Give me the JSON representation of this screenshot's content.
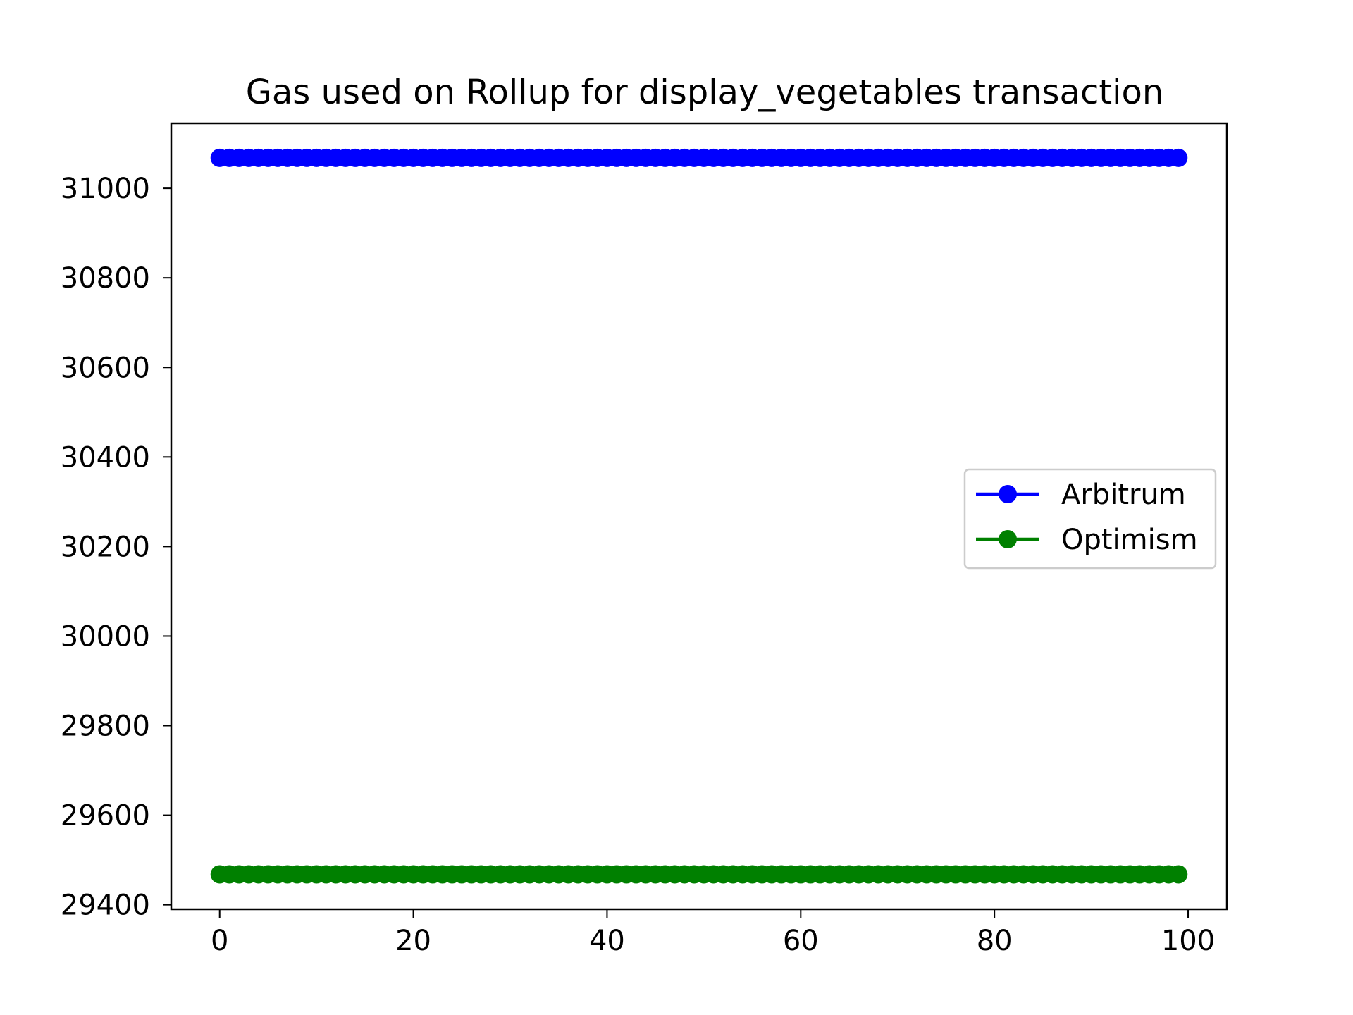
{
  "chart_data": {
    "type": "line",
    "title": "Gas used on Rollup for display_vegetables transaction",
    "xlabel": "",
    "ylabel": "",
    "x": {
      "start": 0,
      "end": 99,
      "step": 1
    },
    "xlim": [
      -5,
      104
    ],
    "ylim": [
      29390,
      31145
    ],
    "xticks": [
      0,
      20,
      40,
      60,
      80,
      100
    ],
    "yticks": [
      29400,
      29600,
      29800,
      30000,
      30200,
      30400,
      30600,
      30800,
      31000
    ],
    "grid": false,
    "legend_position": "center-right",
    "series": [
      {
        "name": "Arbitrum",
        "value": 31068,
        "color": "#0000ff",
        "marker": "circle"
      },
      {
        "name": "Optimism",
        "value": 29468,
        "color": "#008000",
        "marker": "circle"
      }
    ]
  }
}
